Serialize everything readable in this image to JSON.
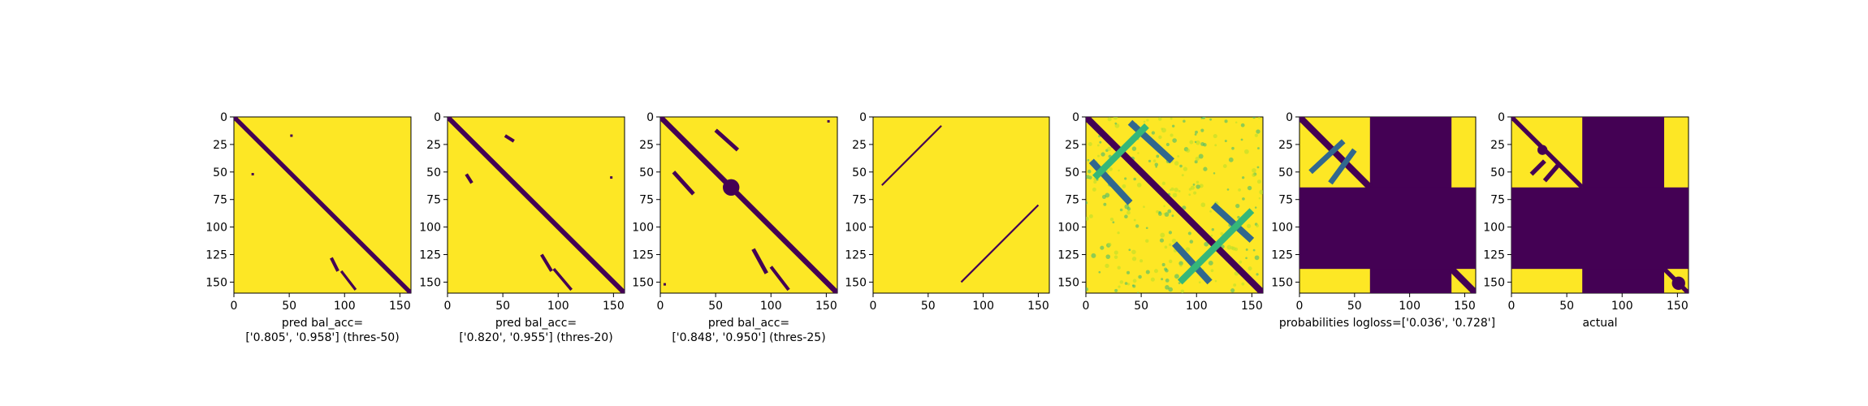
{
  "figure": {
    "background": "#ffffff"
  },
  "colors": {
    "viridis_low": "#440154",
    "viridis_mid1": "#31688e",
    "viridis_mid2": "#35b779",
    "viridis_high": "#fde725"
  },
  "chart_data": [
    {
      "type": "heatmap",
      "colormap": "viridis",
      "matrix_size": 160,
      "xlabel": "pred bal_acc=\n['0.805', '0.958'] (thres-50)",
      "xticks": [
        0,
        50,
        100,
        150
      ],
      "yticks": [
        0,
        25,
        50,
        75,
        100,
        125,
        150
      ],
      "background_value": 1,
      "features": [
        {
          "kind": "diagonal",
          "value": 0,
          "width": 2
        },
        {
          "kind": "segment",
          "value": 0,
          "from": [
            88,
            128
          ],
          "to": [
            94,
            140
          ],
          "width": 1.5
        },
        {
          "kind": "segment",
          "value": 0,
          "from": [
            97,
            140
          ],
          "to": [
            110,
            157
          ],
          "width": 1.2
        },
        {
          "kind": "dot",
          "value": 0,
          "at": [
            17,
            52
          ]
        },
        {
          "kind": "dot",
          "value": 0,
          "at": [
            52,
            17
          ]
        }
      ]
    },
    {
      "type": "heatmap",
      "colormap": "viridis",
      "matrix_size": 160,
      "xlabel": "pred bal_acc=\n['0.820', '0.955'] (thres-20)",
      "xticks": [
        0,
        50,
        100,
        150
      ],
      "yticks": [
        0,
        25,
        50,
        75,
        100,
        125,
        150
      ],
      "background_value": 1,
      "features": [
        {
          "kind": "diagonal",
          "value": 0,
          "width": 2.2
        },
        {
          "kind": "segment",
          "value": 0,
          "from": [
            17,
            52
          ],
          "to": [
            22,
            60
          ],
          "width": 1.5
        },
        {
          "kind": "segment",
          "value": 0,
          "from": [
            52,
            17
          ],
          "to": [
            60,
            22
          ],
          "width": 1.5
        },
        {
          "kind": "segment",
          "value": 0,
          "from": [
            85,
            125
          ],
          "to": [
            94,
            140
          ],
          "width": 1.5
        },
        {
          "kind": "segment",
          "value": 0,
          "from": [
            96,
            138
          ],
          "to": [
            112,
            157
          ],
          "width": 1.3
        },
        {
          "kind": "dot",
          "value": 0,
          "at": [
            148,
            55
          ]
        }
      ]
    },
    {
      "type": "heatmap",
      "colormap": "viridis",
      "matrix_size": 160,
      "xlabel": "pred bal_acc=\n['0.848', '0.950'] (thres-25)",
      "xticks": [
        0,
        50,
        100,
        150
      ],
      "yticks": [
        0,
        25,
        50,
        75,
        100,
        125,
        150
      ],
      "background_value": 1,
      "features": [
        {
          "kind": "diagonal",
          "value": 0,
          "width": 2.4
        },
        {
          "kind": "segment",
          "value": 0,
          "from": [
            12,
            50
          ],
          "to": [
            30,
            70
          ],
          "width": 1.8
        },
        {
          "kind": "segment",
          "value": 0,
          "from": [
            50,
            12
          ],
          "to": [
            70,
            30
          ],
          "width": 1.8
        },
        {
          "kind": "segment",
          "value": 0,
          "from": [
            84,
            120
          ],
          "to": [
            96,
            142
          ],
          "width": 1.8
        },
        {
          "kind": "segment",
          "value": 0,
          "from": [
            100,
            136
          ],
          "to": [
            116,
            157
          ],
          "width": 1.5
        },
        {
          "kind": "blob",
          "value": 0,
          "at": [
            64,
            64
          ],
          "size": 5
        },
        {
          "kind": "dot",
          "value": 0,
          "at": [
            4,
            152
          ]
        },
        {
          "kind": "dot",
          "value": 0,
          "at": [
            152,
            4
          ]
        }
      ]
    },
    {
      "type": "heatmap",
      "colormap": "viridis",
      "matrix_size": 160,
      "xlabel": "",
      "xticks": [
        0,
        50,
        100,
        150
      ],
      "yticks": [
        0,
        25,
        50,
        75,
        100,
        125,
        150
      ],
      "background_value": 1,
      "features": [
        {
          "kind": "segment",
          "value": 0,
          "from": [
            62,
            8
          ],
          "to": [
            8,
            62
          ],
          "width": 0.8
        },
        {
          "kind": "segment",
          "value": 0,
          "from": [
            150,
            80
          ],
          "to": [
            80,
            150
          ],
          "width": 0.8
        }
      ]
    },
    {
      "type": "heatmap",
      "colormap": "viridis",
      "matrix_size": 160,
      "xlabel": "",
      "xticks": [
        0,
        50,
        100,
        150
      ],
      "yticks": [
        0,
        25,
        50,
        75,
        100,
        125,
        150
      ],
      "background_value": 1,
      "texture": "speckle",
      "features": [
        {
          "kind": "diagonal",
          "value": 0.05,
          "width": 3
        },
        {
          "kind": "segment",
          "value": 0.3,
          "from": [
            5,
            40
          ],
          "to": [
            40,
            78
          ],
          "width": 3
        },
        {
          "kind": "segment",
          "value": 0.3,
          "from": [
            40,
            5
          ],
          "to": [
            78,
            40
          ],
          "width": 3
        },
        {
          "kind": "segment",
          "value": 0.3,
          "from": [
            80,
            115
          ],
          "to": [
            112,
            150
          ],
          "width": 3
        },
        {
          "kind": "segment",
          "value": 0.3,
          "from": [
            115,
            80
          ],
          "to": [
            150,
            112
          ],
          "width": 3
        },
        {
          "kind": "segment",
          "value": 0.55,
          "from": [
            8,
            55
          ],
          "to": [
            55,
            8
          ],
          "width": 3
        },
        {
          "kind": "segment",
          "value": 0.55,
          "from": [
            150,
            85
          ],
          "to": [
            85,
            150
          ],
          "width": 3
        }
      ]
    },
    {
      "type": "heatmap",
      "colormap": "viridis",
      "matrix_size": 160,
      "xlabel": "probabilities logloss=['0.036', '0.728']",
      "xticks": [
        0,
        50,
        100,
        150
      ],
      "yticks": [
        0,
        25,
        50,
        75,
        100,
        125,
        150
      ],
      "background_value": 1,
      "features": [
        {
          "kind": "rect",
          "value": 0,
          "x": [
            64,
            138
          ],
          "y": [
            0,
            160
          ]
        },
        {
          "kind": "rect",
          "value": 0,
          "x": [
            0,
            160
          ],
          "y": [
            64,
            138
          ]
        },
        {
          "kind": "diagonal",
          "value": 0.05,
          "width": 3,
          "clip": [
            0,
            64
          ]
        },
        {
          "kind": "diagonal",
          "value": 0.05,
          "width": 3,
          "clip": [
            138,
            160
          ]
        },
        {
          "kind": "segment",
          "value": 0.3,
          "from": [
            10,
            50
          ],
          "to": [
            40,
            22
          ],
          "width": 2.5
        },
        {
          "kind": "segment",
          "value": 0.3,
          "from": [
            28,
            60
          ],
          "to": [
            50,
            30
          ],
          "width": 2.5
        }
      ]
    },
    {
      "type": "heatmap",
      "colormap": "viridis",
      "matrix_size": 160,
      "xlabel": "actual",
      "xticks": [
        0,
        50,
        100,
        150
      ],
      "yticks": [
        0,
        25,
        50,
        75,
        100,
        125,
        150
      ],
      "background_value": 1,
      "features": [
        {
          "kind": "rect",
          "value": 0,
          "x": [
            64,
            138
          ],
          "y": [
            0,
            160
          ]
        },
        {
          "kind": "rect",
          "value": 0,
          "x": [
            0,
            160
          ],
          "y": [
            64,
            138
          ]
        },
        {
          "kind": "diagonal",
          "value": 0,
          "width": 2,
          "clip": [
            0,
            64
          ]
        },
        {
          "kind": "diagonal",
          "value": 0,
          "width": 2,
          "clip": [
            138,
            160
          ]
        },
        {
          "kind": "segment",
          "value": 0,
          "from": [
            18,
            52
          ],
          "to": [
            30,
            40
          ],
          "width": 2
        },
        {
          "kind": "segment",
          "value": 0,
          "from": [
            30,
            58
          ],
          "to": [
            42,
            44
          ],
          "width": 2
        },
        {
          "kind": "blob",
          "value": 0,
          "at": [
            28,
            30
          ],
          "size": 3
        },
        {
          "kind": "blob",
          "value": 0,
          "at": [
            151,
            151
          ],
          "size": 4
        }
      ]
    }
  ]
}
